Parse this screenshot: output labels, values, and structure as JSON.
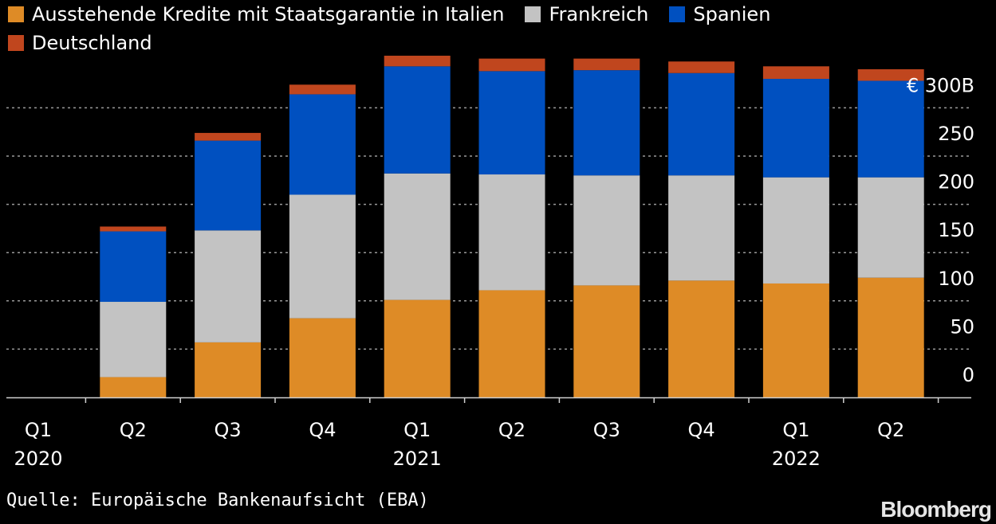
{
  "chart_data": {
    "type": "bar",
    "stacked": true,
    "categories": [
      "Q1 2020",
      "Q2 2020",
      "Q3 2020",
      "Q4 2020",
      "Q1 2021",
      "Q2 2021",
      "Q3 2021",
      "Q4 2021",
      "Q1 2022",
      "Q2 2022"
    ],
    "x_tick_labels": [
      {
        "quarter": "Q1",
        "year": "2020"
      },
      {
        "quarter": "Q2",
        "year": ""
      },
      {
        "quarter": "Q3",
        "year": ""
      },
      {
        "quarter": "Q4",
        "year": ""
      },
      {
        "quarter": "Q1",
        "year": "2021"
      },
      {
        "quarter": "Q2",
        "year": ""
      },
      {
        "quarter": "Q3",
        "year": ""
      },
      {
        "quarter": "Q4",
        "year": ""
      },
      {
        "quarter": "Q1",
        "year": "2022"
      },
      {
        "quarter": "Q2",
        "year": ""
      }
    ],
    "series": [
      {
        "name": "Ausstehende Kredite mit Staatsgarantie in Italien",
        "color": "#de8b26",
        "values": [
          0,
          21,
          57,
          82,
          101,
          111,
          116,
          121,
          118,
          124
        ]
      },
      {
        "name": "Frankreich",
        "color": "#c3c3c3",
        "values": [
          0,
          78,
          116,
          128,
          131,
          120,
          114,
          109,
          110,
          104
        ]
      },
      {
        "name": "Spanien",
        "color": "#0050c0",
        "values": [
          0,
          73,
          93,
          104,
          111,
          107,
          109,
          106,
          102,
          100
        ]
      },
      {
        "name": "Deutschland",
        "color": "#c0461e",
        "values": [
          0,
          5,
          8,
          10,
          11,
          13,
          12,
          12,
          13,
          12
        ]
      }
    ],
    "y_ticks": [
      0,
      50,
      100,
      150,
      200,
      250,
      300
    ],
    "y_tick_labels": [
      "0",
      "50",
      "100",
      "150",
      "200",
      "250",
      "€ 300B"
    ],
    "ylim": [
      0,
      350
    ],
    "y_axis_position": "right",
    "grid": "dotted horizontal",
    "legend_position": "top-left",
    "source": "Quelle: Europäische Bankenaufsicht (EBA)",
    "brand": "Bloomberg"
  }
}
